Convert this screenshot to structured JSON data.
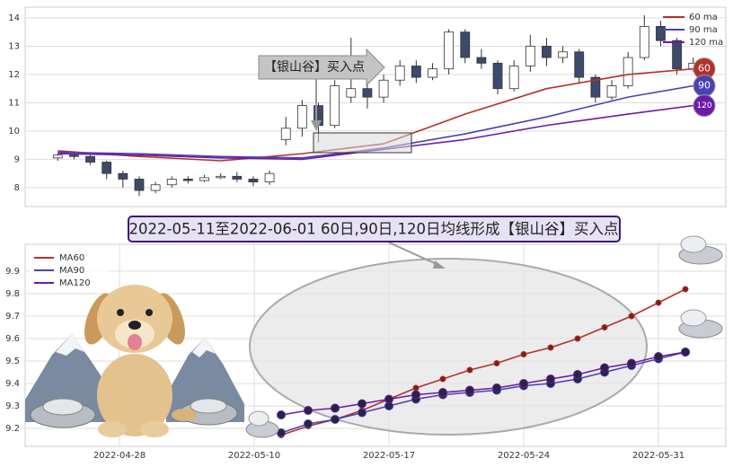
{
  "chart_data": [
    {
      "type": "candlestick",
      "open": [
        9.05,
        9.15,
        9.1,
        8.9,
        8.5,
        8.3,
        7.9,
        8.1,
        8.3,
        8.25,
        8.35,
        8.4,
        8.3,
        8.2,
        9.7,
        10.1,
        10.9,
        10.2,
        11.2,
        11.5,
        11.2,
        11.8,
        12.3,
        11.9,
        12.2,
        13.5,
        12.6,
        12.4,
        11.5,
        12.3,
        13.0,
        12.6,
        12.8,
        11.9,
        11.2,
        11.6,
        12.6,
        13.7,
        13.2,
        12.2
      ],
      "close": [
        9.15,
        9.1,
        8.9,
        8.5,
        8.3,
        7.9,
        8.1,
        8.3,
        8.25,
        8.35,
        8.4,
        8.3,
        8.2,
        8.5,
        10.1,
        10.9,
        10.2,
        11.6,
        11.5,
        11.2,
        11.8,
        12.3,
        11.9,
        12.2,
        13.5,
        12.6,
        12.4,
        11.5,
        12.3,
        13.0,
        12.6,
        12.8,
        11.9,
        11.2,
        11.6,
        12.6,
        13.7,
        13.2,
        12.2,
        12.4
      ],
      "high": [
        9.2,
        9.25,
        9.15,
        8.95,
        8.6,
        8.4,
        8.2,
        8.4,
        8.4,
        8.45,
        8.5,
        8.55,
        8.4,
        8.6,
        10.5,
        11.1,
        11.0,
        11.8,
        13.3,
        11.8,
        12.0,
        12.5,
        12.5,
        12.4,
        13.6,
        13.6,
        12.9,
        12.5,
        12.5,
        13.4,
        13.3,
        13.0,
        12.9,
        12.0,
        11.8,
        12.8,
        14.1,
        13.9,
        13.3,
        12.6
      ],
      "low": [
        8.95,
        9.0,
        8.8,
        8.3,
        8.0,
        7.7,
        7.8,
        8.0,
        8.15,
        8.2,
        8.3,
        8.2,
        8.05,
        8.1,
        9.5,
        9.8,
        9.6,
        10.1,
        11.0,
        10.8,
        11.0,
        11.6,
        11.7,
        11.8,
        12.0,
        12.4,
        12.2,
        11.3,
        11.4,
        12.1,
        12.3,
        12.4,
        11.7,
        11.0,
        11.1,
        11.5,
        12.5,
        13.0,
        12.0,
        12.1
      ],
      "up_color": "#ffffff",
      "down_color": "#3d4a6b",
      "xlim": [
        -2,
        41
      ],
      "ylim": [
        7.33,
        14.38
      ],
      "yticks": [
        8,
        9,
        10,
        11,
        12,
        13,
        14
      ],
      "grid": true,
      "series": [
        {
          "name": "60 ma",
          "color": "#b5302a",
          "x": [
            0,
            5,
            10,
            15,
            20,
            25,
            30,
            35,
            39
          ],
          "values": [
            9.3,
            9.1,
            8.95,
            9.2,
            9.55,
            10.6,
            11.5,
            12.0,
            12.2
          ]
        },
        {
          "name": "90 ma",
          "color": "#4a42b0",
          "x": [
            0,
            5,
            10,
            15,
            20,
            25,
            30,
            35,
            39
          ],
          "values": [
            9.25,
            9.2,
            9.1,
            9.05,
            9.4,
            9.9,
            10.5,
            11.2,
            11.6
          ]
        },
        {
          "name": "120 ma",
          "color": "#6d1aa8",
          "x": [
            0,
            5,
            10,
            15,
            20,
            25,
            30,
            35,
            39
          ],
          "values": [
            9.2,
            9.15,
            9.05,
            9.0,
            9.35,
            9.7,
            10.2,
            10.6,
            10.9
          ]
        }
      ],
      "annotation": "【银山谷】买入点",
      "badges": [
        "60",
        "90",
        "120"
      ]
    },
    {
      "type": "line",
      "title": "2022-05-11至2022-06-01 60日,90日,120日均线形成【银山谷】买入点",
      "categories": [
        null,
        null,
        null,
        "2022-04-28",
        null,
        null,
        null,
        null,
        "2022-05-10",
        null,
        null,
        null,
        null,
        "2022-05-17",
        null,
        null,
        null,
        null,
        "2022-05-24",
        null,
        null,
        null,
        null,
        "2022-05-31",
        null,
        null
      ],
      "ylim": [
        9.12,
        10.02
      ],
      "yticks": [
        9.2,
        9.3,
        9.4,
        9.5,
        9.6,
        9.7,
        9.8,
        9.9
      ],
      "grid": true,
      "series": [
        {
          "name": "MA60",
          "color": "#b5302a",
          "values": [
            null,
            null,
            null,
            null,
            null,
            null,
            null,
            null,
            null,
            9.17,
            9.21,
            9.24,
            9.28,
            9.33,
            9.38,
            9.42,
            9.46,
            9.49,
            9.53,
            9.56,
            9.6,
            9.65,
            9.7,
            9.76,
            9.82,
            null
          ]
        },
        {
          "name": "MA90",
          "color": "#4a42b0",
          "values": [
            null,
            null,
            null,
            null,
            null,
            null,
            null,
            null,
            null,
            9.18,
            9.22,
            9.24,
            9.27,
            9.3,
            9.33,
            9.35,
            9.36,
            9.37,
            9.39,
            9.4,
            9.42,
            9.45,
            9.48,
            9.51,
            9.54,
            null
          ]
        },
        {
          "name": "MA120",
          "color": "#6d1aa8",
          "values": [
            null,
            null,
            null,
            null,
            null,
            null,
            null,
            null,
            null,
            9.26,
            9.28,
            9.29,
            9.31,
            9.33,
            9.35,
            9.36,
            9.37,
            9.38,
            9.4,
            9.42,
            9.44,
            9.47,
            9.49,
            9.52,
            9.54,
            null
          ]
        }
      ]
    }
  ]
}
